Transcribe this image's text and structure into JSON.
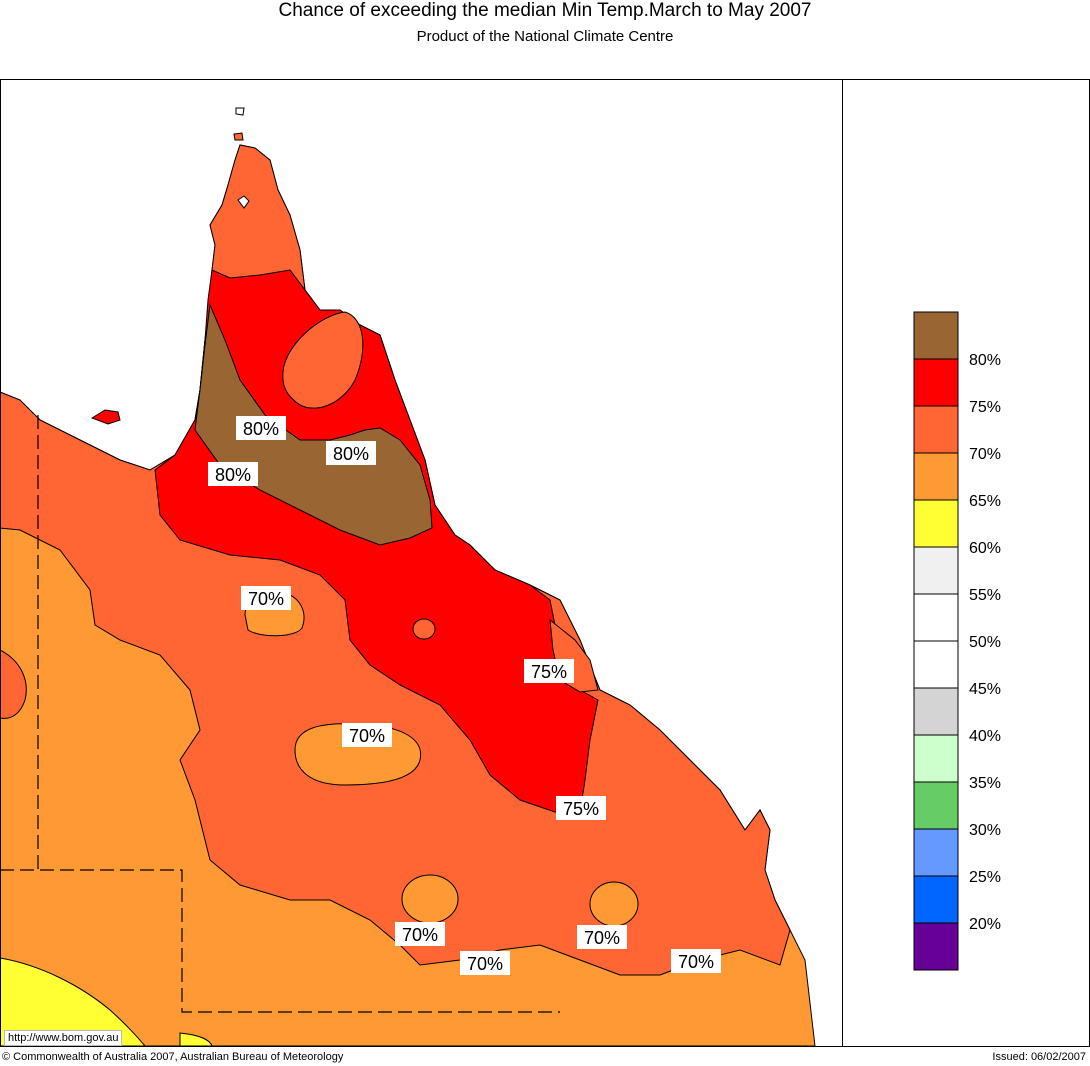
{
  "header": {
    "title": "Chance of exceeding the median Min Temp.March to May 2007",
    "subtitle": "Product of the National Climate Centre"
  },
  "footer": {
    "copyright": "© Commonwealth of Australia 2007, Australian Bureau of Meteorology",
    "issued": "Issued: 06/02/2007",
    "url": "http://www.bom.gov.au"
  },
  "legend": {
    "items": [
      {
        "color": "#996633",
        "label": "80%"
      },
      {
        "color": "#ff0000",
        "label": "75%"
      },
      {
        "color": "#ff6633",
        "label": "70%"
      },
      {
        "color": "#ff9933",
        "label": "65%"
      },
      {
        "color": "#ffff33",
        "label": "60%"
      },
      {
        "color": "#f0f0f0",
        "label": "55%"
      },
      {
        "color": "#ffffff",
        "label": "50%"
      },
      {
        "color": "#ffffff",
        "label": "45%"
      },
      {
        "color": "#d4d4d4",
        "label": "40%"
      },
      {
        "color": "#ccffcc",
        "label": "35%"
      },
      {
        "color": "#66cc66",
        "label": "30%"
      },
      {
        "color": "#6699ff",
        "label": "25%"
      },
      {
        "color": "#0066ff",
        "label": "20%"
      },
      {
        "color": "#660099",
        "label": ""
      }
    ]
  },
  "map": {
    "contour_labels": [
      "80%",
      "80%",
      "80%",
      "70%",
      "75%",
      "70%",
      "75%",
      "70%",
      "70%",
      "70%",
      "70%"
    ]
  }
}
